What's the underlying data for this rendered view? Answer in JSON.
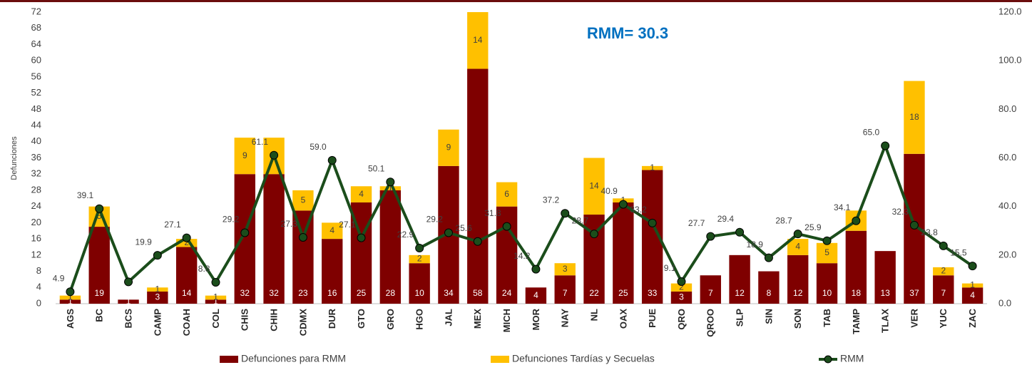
{
  "chart_data": {
    "type": "bar_line",
    "annotation": "RMM= 30.3",
    "y_label": "Defunciones",
    "categories": [
      "AGS",
      "BC",
      "BCS",
      "CAMP",
      "COAH",
      "COL",
      "CHIS",
      "CHIH",
      "CDMX",
      "DUR",
      "GTO",
      "GRO",
      "HGO",
      "JAL",
      "MEX",
      "MICH",
      "MOR",
      "NAY",
      "NL",
      "OAX",
      "PUE",
      "QRO",
      "QROO",
      "SLP",
      "SIN",
      "SON",
      "TAB",
      "TAMP",
      "TLAX",
      "VER",
      "YUC",
      "ZAC"
    ],
    "series": [
      {
        "name": "Defunciones para RMM",
        "color": "#7f0000",
        "type": "bar",
        "values": [
          1,
          19,
          1,
          3,
          14,
          1,
          32,
          32,
          23,
          16,
          25,
          28,
          10,
          34,
          58,
          24,
          4,
          7,
          22,
          25,
          33,
          3,
          7,
          12,
          8,
          12,
          10,
          18,
          13,
          37,
          7,
          4
        ]
      },
      {
        "name": "Defunciones Tardías y Secuelas",
        "color": "#ffc000",
        "type": "bar",
        "values": [
          1,
          5,
          null,
          1,
          2,
          1,
          9,
          9,
          5,
          4,
          4,
          1,
          2,
          9,
          14,
          6,
          null,
          3,
          14,
          1,
          1,
          2,
          null,
          null,
          null,
          4,
          5,
          5,
          null,
          18,
          2,
          1
        ]
      },
      {
        "name": "RMM",
        "color": "#1b4d1b",
        "type": "line",
        "axis": "y2",
        "values": [
          4.9,
          39.1,
          9,
          19.9,
          27.1,
          8.8,
          29.2,
          61.1,
          27.3,
          59.0,
          27.1,
          50.1,
          22.9,
          29.2,
          25.6,
          31.8,
          14.2,
          37.2,
          28.7,
          40.9,
          33.2,
          9.1,
          27.7,
          29.4,
          18.9,
          28.7,
          25.9,
          34.1,
          65.0,
          32.3,
          23.8,
          15.5
        ],
        "value_labels": [
          "4.9",
          "39.1",
          null,
          "19.9",
          "27.1",
          "8.8",
          "29.2",
          "61.1",
          "27.3",
          "59.0",
          "27.1",
          "50.1",
          "22.9",
          "29.2",
          "25.6",
          "31.8",
          "14.2",
          "37.2",
          "28.7",
          "40.9",
          "33.2",
          "9.1",
          "27.7",
          "29.4",
          "18.9",
          "28.7",
          "25.9",
          "34.1",
          "65.0",
          "32.3",
          "23.8",
          "15.5"
        ]
      }
    ],
    "ylim": [
      0,
      72
    ],
    "yticks": [
      0,
      4,
      8,
      12,
      16,
      20,
      24,
      28,
      32,
      36,
      40,
      44,
      48,
      52,
      56,
      60,
      64,
      68,
      72
    ],
    "y2lim": [
      0,
      120
    ],
    "y2ticks": [
      {
        "value": 0,
        "label": "0.0"
      },
      {
        "value": 20,
        "label": "20.0"
      },
      {
        "value": 40,
        "label": "40.0"
      },
      {
        "value": 60,
        "label": "60.0"
      },
      {
        "value": 80,
        "label": "80.0"
      },
      {
        "value": 100,
        "label": "100.0"
      },
      {
        "value": 120,
        "label": "120.0"
      }
    ],
    "legend": "bottom"
  }
}
